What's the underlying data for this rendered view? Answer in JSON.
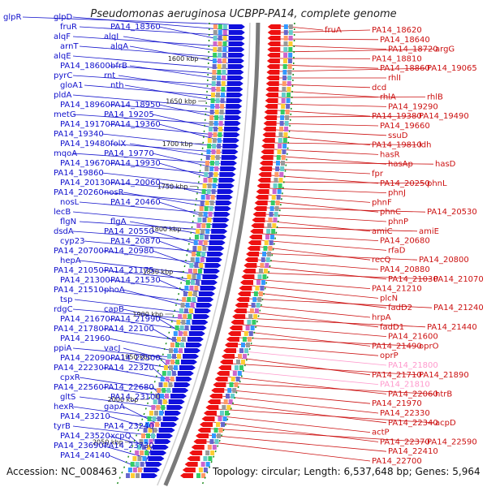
{
  "title": "Pseudomonas aeruginosa UCBPP-PA14, complete genome",
  "footer": {
    "accession": "Accession: NC_008463",
    "stats": "Topology: circular; Length: 6,537,648 bp; Genes: 5,964"
  },
  "colors": {
    "left": "#1111cc",
    "right": "#cc1111",
    "pink": "#ff99cc",
    "backbone": "#888888",
    "tick": "#1a8a1a"
  },
  "scale_labels": [
    "1600 kbp",
    "1650 kbp",
    "1700 kbp",
    "1750 kbp",
    "1800 kbp",
    "1850 kbp",
    "1900 kbp",
    "1950 kbp",
    "2000 kbp",
    "2050 kbp"
  ],
  "left_labels": [
    "glpR",
    "glpD",
    "fruR",
    "PA14_18360",
    "alqF",
    "alqI",
    "arnT",
    "alqA",
    "alqE",
    "PA14_18600",
    "bfrB",
    "pyrC",
    "rnt",
    "gloA1",
    "nth",
    "pldA",
    "PA14_18960",
    "PA14_18950",
    "metG",
    "PA14_19205",
    "PA14_19170",
    "PA14_19360",
    "PA14_19340",
    "PA14_19480",
    "folX",
    "mqoA",
    "PA14_19770",
    "PA14_19670",
    "PA14_19930",
    "PA14_19860",
    "PA14_20130",
    "PA14_20060",
    "PA14_20260",
    "nosR",
    "nosL",
    "PA14_20460",
    "lecB",
    "flgN",
    "flgA",
    "dsdA",
    "PA14_20550",
    "cyp23",
    "PA14_20870",
    "PA14_20700",
    "PA14_20980",
    "hepA",
    "PA14_21050",
    "PA14_21175",
    "PA14_21300",
    "PA14_21530",
    "PA14_21510",
    "phoA",
    "tsp",
    "rdgC",
    "capB",
    "PA14_21670",
    "PA14_21990",
    "PA14_21780",
    "PA14_22100",
    "PA14_21960",
    "ppiA",
    "vacJ",
    "PA14_22090",
    "PA14_22500",
    "PA14_22230",
    "PA14_22320",
    "cpxR",
    "PA14_22560",
    "PA14_22680",
    "gltS",
    "PA14_23100",
    "hexR",
    "gapA",
    "PA14_23210",
    "tyrB",
    "PA14_23240",
    "PA14_23520",
    "xcpQ",
    "PA14_23690",
    "PA14_23730",
    "PA14_24140"
  ],
  "right_labels": [
    "fruA",
    "PA14_18620",
    "PA14_18640",
    "PA14_18720",
    "argG",
    "PA14_18810",
    "PA14_18860",
    "PA14_19065",
    "rhlI",
    "dcd",
    "rhlA",
    "rhlB",
    "PA14_19290",
    "PA14_19380",
    "PA14_19490",
    "PA14_19660",
    "ssuD",
    "PA14_19810",
    "ldh",
    "hasR",
    "hasAp",
    "hasD",
    "fpr",
    "PA14_20250",
    "phnL",
    "phnJ",
    "phnF",
    "phnC",
    "PA14_20530",
    "phnP",
    "amiC",
    "amiE",
    "PA14_20680",
    "rfaD",
    "recQ",
    "PA14_20800",
    "PA14_20880",
    "PA14_21030",
    "PA14_21070",
    "PA14_21210",
    "plcN",
    "fadD2",
    "PA14_21240",
    "hrpA",
    "fadD1",
    "PA14_21440",
    "PA14_21600",
    "PA14_21490",
    "oprO",
    "oprP",
    "PA14_21800",
    "PA14_21710",
    "PA14_21890",
    "PA14_21810",
    "PA14_22060",
    "htrB",
    "PA14_21970",
    "PA14_22330",
    "PA14_22340",
    "acpD",
    "actP",
    "PA14_22370",
    "PA14_22590",
    "PA14_22410",
    "PA14_22700"
  ]
}
